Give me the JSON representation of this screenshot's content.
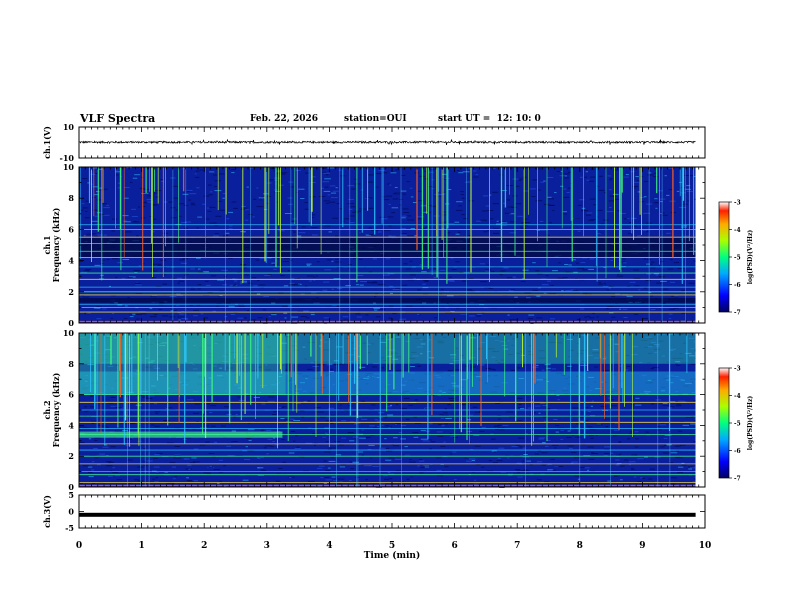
{
  "header": {
    "title": "VLF Spectra",
    "date": "Feb. 22, 2026",
    "station": "station=OUI",
    "start": "start UT =  12: 10: 0"
  },
  "colors": {
    "background": "#ffffff",
    "axis": "#000000",
    "spectrogram_base": "#0a1f9c",
    "trace": "#000000"
  },
  "chart_data": [
    {
      "type": "line",
      "name": "ch1-waveform",
      "ylabel": "ch.1(V)",
      "ylim": [
        -10,
        10
      ],
      "yticks": [
        "10",
        "-10"
      ],
      "series": [
        {
          "name": "ch.1",
          "mean": 0.2,
          "amplitude": 0.6
        }
      ]
    },
    {
      "type": "heatmap",
      "name": "ch1-spectrogram",
      "ylabel": "ch.1\nFrequency (kHz)",
      "ylim": [
        0,
        10
      ],
      "yticks": [
        "0",
        "2",
        "4",
        "6",
        "8",
        "10"
      ],
      "xlim": [
        0,
        9.85
      ],
      "colorbar": {
        "label": "log(PSD)(V²/Hz)",
        "range": [
          -7,
          -3
        ],
        "ticks": [
          "-3",
          "-4",
          "-5",
          "-6",
          "-7"
        ]
      },
      "lines_khz": [
        0.7,
        1.0,
        1.2,
        1.8,
        2.0,
        2.3,
        2.8,
        3.2,
        3.6,
        4.2,
        4.6,
        5.1,
        5.5,
        6.0,
        6.3
      ],
      "dark_bands_khz": [
        [
          4.2,
          5.5
        ],
        [
          1.3,
          1.6
        ]
      ],
      "sferic_count": 90
    },
    {
      "type": "heatmap",
      "name": "ch2-spectrogram",
      "ylabel": "ch.2\nFrequency (kHz)",
      "ylim": [
        0,
        10
      ],
      "yticks": [
        "0",
        "2",
        "4",
        "6",
        "8",
        "10"
      ],
      "xlim": [
        0,
        9.85
      ],
      "colorbar": {
        "label": "log(PSD)(V²/Hz)",
        "range": [
          -7,
          -3
        ],
        "ticks": [
          "-3",
          "-4",
          "-5",
          "-6",
          "-7"
        ]
      },
      "lines_khz": [
        0.3,
        0.8,
        1.0,
        1.5,
        2.0,
        2.4,
        2.8,
        3.4,
        3.8,
        4.2,
        4.6,
        5.0,
        5.5,
        6.0
      ],
      "bright_band_khz": [
        6.0,
        7.5
      ],
      "early_band_khz": [
        3.2,
        3.6
      ],
      "early_band_end_min": 3.25,
      "sferic_count": 110
    },
    {
      "type": "line",
      "name": "ch3-waveform",
      "ylabel": "ch.3(V)",
      "ylim": [
        -5,
        5
      ],
      "yticks": [
        "5",
        "0",
        "-5"
      ],
      "series": [
        {
          "name": "ch.3",
          "mean": -1.0,
          "amplitude": 0.15
        }
      ]
    }
  ],
  "xaxis": {
    "label": "Time (min)",
    "ticks": [
      "0",
      "1",
      "2",
      "3",
      "4",
      "5",
      "6",
      "7",
      "8",
      "9",
      "10"
    ],
    "range": [
      0,
      10
    ]
  }
}
